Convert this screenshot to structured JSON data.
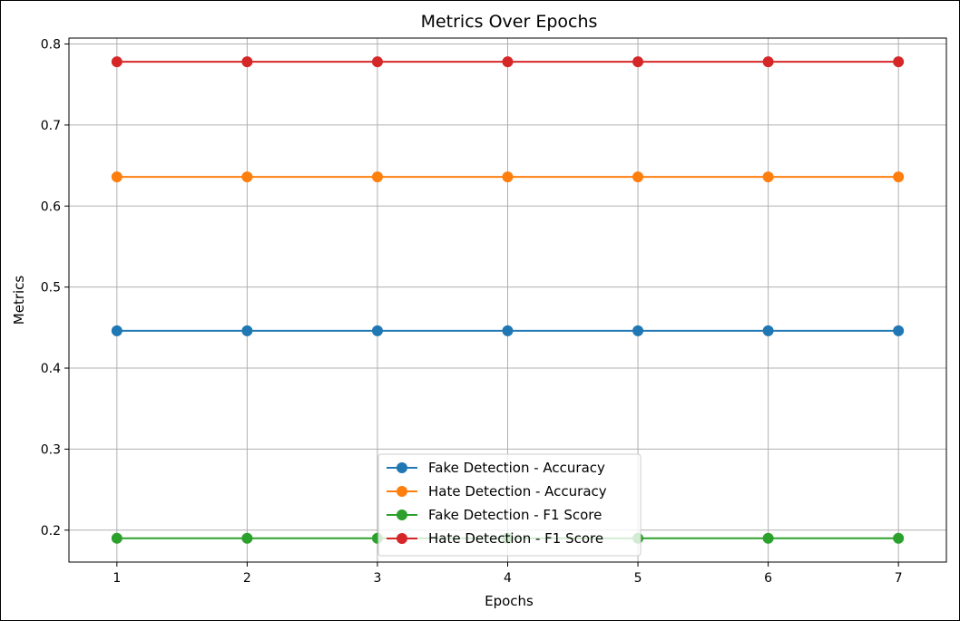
{
  "chart_data": {
    "type": "line",
    "title": "Metrics Over Epochs",
    "xlabel": "Epochs",
    "ylabel": "Metrics",
    "x": [
      1,
      2,
      3,
      4,
      5,
      6,
      7
    ],
    "xticks": [
      "1",
      "2",
      "3",
      "4",
      "5",
      "6",
      "7"
    ],
    "yticks": [
      "0.2",
      "0.3",
      "0.4",
      "0.5",
      "0.6",
      "0.7",
      "0.8"
    ],
    "xlim": [
      0.632,
      7.368
    ],
    "ylim": [
      0.1606,
      0.8073
    ],
    "grid": true,
    "legend_position": "bottom-center",
    "series": [
      {
        "name": "Fake Detection - Accuracy",
        "color": "#1f77b4",
        "marker": "circle",
        "values": [
          0.446,
          0.446,
          0.446,
          0.446,
          0.446,
          0.446,
          0.446
        ]
      },
      {
        "name": "Hate Detection - Accuracy",
        "color": "#ff7f0e",
        "marker": "circle",
        "values": [
          0.636,
          0.636,
          0.636,
          0.636,
          0.636,
          0.636,
          0.636
        ]
      },
      {
        "name": "Fake Detection - F1 Score",
        "color": "#2ca02c",
        "marker": "circle",
        "values": [
          0.19,
          0.19,
          0.19,
          0.19,
          0.19,
          0.19,
          0.19
        ]
      },
      {
        "name": "Hate Detection - F1 Score",
        "color": "#d62728",
        "marker": "circle",
        "values": [
          0.778,
          0.778,
          0.778,
          0.778,
          0.778,
          0.778,
          0.778
        ]
      }
    ]
  }
}
